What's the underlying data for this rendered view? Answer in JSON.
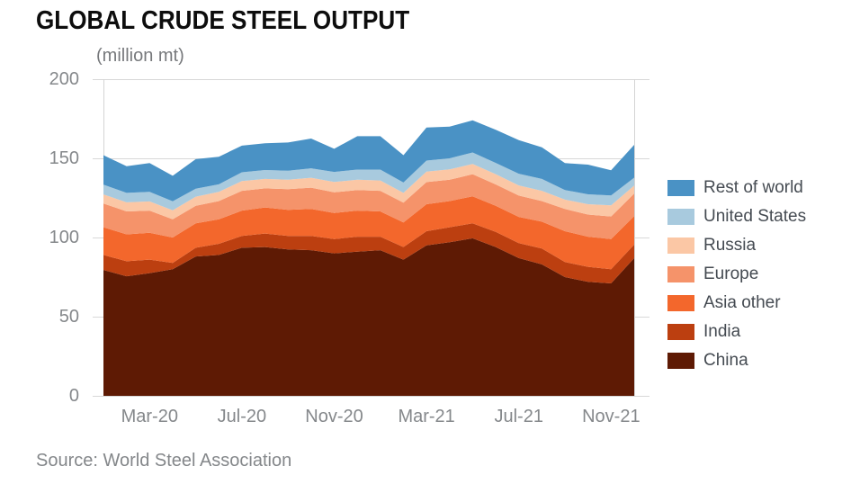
{
  "header": {
    "title": "GLOBAL CRUDE STEEL OUTPUT",
    "units_label": "(million mt)"
  },
  "source": {
    "text": "Source: World Steel Association"
  },
  "chart_data": {
    "type": "area",
    "stacked": true,
    "title": "GLOBAL CRUDE STEEL OUTPUT",
    "ylabel": "(million mt)",
    "xlabel": "",
    "ylim": [
      0,
      200
    ],
    "grid": "horizontal",
    "legend_position": "right",
    "months": [
      "Jan-20",
      "Feb-20",
      "Mar-20",
      "Apr-20",
      "May-20",
      "Jun-20",
      "Jul-20",
      "Aug-20",
      "Sep-20",
      "Oct-20",
      "Nov-20",
      "Dec-20",
      "Jan-21",
      "Feb-21",
      "Mar-21",
      "Apr-21",
      "May-21",
      "Jun-21",
      "Jul-21",
      "Aug-21",
      "Sep-21",
      "Oct-21",
      "Nov-21",
      "Dec-21"
    ],
    "x_tick_labels": [
      "Mar-20",
      "Jul-20",
      "Nov-20",
      "Mar-21",
      "Jul-21",
      "Nov-21"
    ],
    "x_tick_month_indices": [
      2,
      6,
      10,
      14,
      18,
      22
    ],
    "y_ticks": [
      0,
      50,
      100,
      150,
      200
    ],
    "y_tick_labels": [
      "0",
      "50",
      "100",
      "150",
      "200"
    ],
    "series": [
      {
        "name": "Rest of world",
        "color": "#4a92c5",
        "values": [
          18.6,
          16.8,
          18.2,
          16.1,
          18.7,
          17.4,
          16.8,
          16.9,
          17.8,
          18.8,
          14.6,
          21.1,
          21.1,
          17.3,
          20.9,
          20.0,
          20.3,
          20.9,
          21.2,
          20.0,
          17.0,
          18.7,
          15.9,
          20.7
        ]
      },
      {
        "name": "United States",
        "color": "#a8cade",
        "values": [
          6.2,
          6.0,
          6.0,
          5.7,
          5.0,
          4.8,
          5.5,
          5.6,
          5.7,
          6.0,
          6.3,
          6.4,
          6.9,
          6.5,
          7.0,
          7.0,
          7.2,
          7.1,
          7.4,
          7.5,
          6.1,
          6.3,
          6.3,
          5.0
        ]
      },
      {
        "name": "Russia",
        "color": "#fbc7a5",
        "values": [
          5.7,
          5.7,
          5.8,
          5.7,
          5.8,
          5.8,
          6.2,
          6.0,
          6.0,
          6.2,
          6.6,
          6.5,
          6.5,
          6.2,
          6.6,
          6.5,
          6.5,
          6.5,
          6.4,
          6.5,
          5.9,
          6.5,
          7.0,
          5.0
        ]
      },
      {
        "name": "Europe",
        "color": "#f5936a",
        "values": [
          15.0,
          14.5,
          14.0,
          11.5,
          11.0,
          11.5,
          12.5,
          12.0,
          13.0,
          13.5,
          13.0,
          13.0,
          13.0,
          12.5,
          14.0,
          13.5,
          14.0,
          13.5,
          13.5,
          13.0,
          14.0,
          14.0,
          14.3,
          14.3
        ]
      },
      {
        "name": "Asia other",
        "color": "#f3672c",
        "values": [
          17.5,
          17.0,
          17.0,
          16.0,
          15.5,
          15.5,
          16.0,
          16.5,
          16.5,
          17.0,
          16.5,
          16.5,
          16.0,
          15.5,
          17.0,
          16.5,
          17.0,
          16.5,
          16.5,
          17.0,
          19.5,
          19.0,
          19.0,
          18.0
        ]
      },
      {
        "name": "India",
        "color": "#bc3f10",
        "values": [
          9.5,
          9.5,
          8.5,
          4.0,
          5.5,
          7.0,
          7.5,
          8.5,
          8.5,
          9.0,
          9.0,
          9.5,
          8.5,
          8.0,
          9.0,
          9.5,
          9.5,
          9.5,
          9.5,
          10.0,
          9.5,
          9.5,
          9.0,
          8.5
        ]
      },
      {
        "name": "China",
        "color": "#5e1a04",
        "values": [
          79.5,
          75.5,
          77.5,
          80.0,
          88.0,
          89.0,
          93.5,
          94.0,
          92.5,
          92.0,
          90.0,
          91.0,
          92.0,
          86.0,
          95.0,
          97.0,
          99.5,
          94.0,
          87.0,
          83.0,
          75.0,
          72.0,
          71.0,
          87.0
        ]
      }
    ]
  }
}
